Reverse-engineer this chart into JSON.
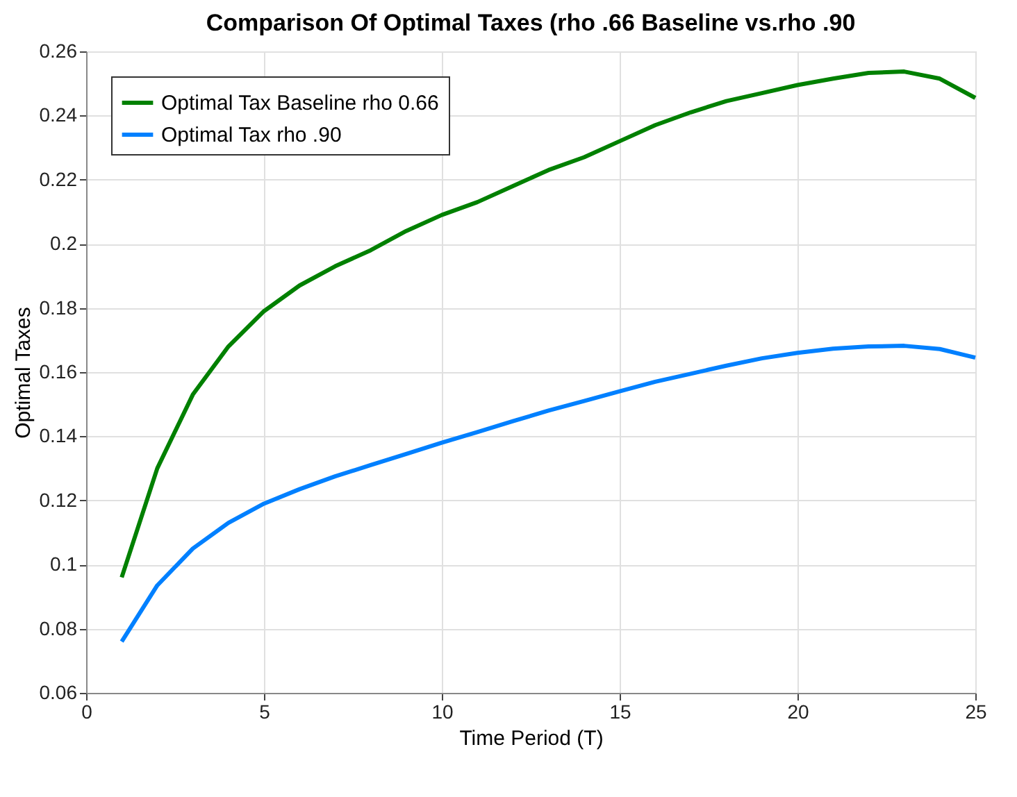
{
  "chart_data": {
    "type": "line",
    "title": "Comparison Of Optimal Taxes (rho .66 Baseline vs.rho .90",
    "xlabel": "Time Period (T)",
    "ylabel": "Optimal Taxes",
    "x": [
      1,
      2,
      3,
      4,
      5,
      6,
      7,
      8,
      9,
      10,
      11,
      12,
      13,
      14,
      15,
      16,
      17,
      18,
      19,
      20,
      21,
      22,
      23,
      24,
      25
    ],
    "series": [
      {
        "name": "Optimal Tax Baseline rho 0.66",
        "color": "#008000",
        "values": [
          0.096,
          0.13,
          0.153,
          0.168,
          0.179,
          0.187,
          0.193,
          0.198,
          0.204,
          0.209,
          0.213,
          0.218,
          0.223,
          0.227,
          0.232,
          0.237,
          0.241,
          0.2445,
          0.247,
          0.2495,
          0.2515,
          0.2533,
          0.2537,
          0.2515,
          0.2455
        ]
      },
      {
        "name": " Optimal Tax rho .90",
        "color": "#0080ff",
        "values": [
          0.076,
          0.0935,
          0.105,
          0.113,
          0.119,
          0.1235,
          0.1275,
          0.131,
          0.1345,
          0.138,
          0.1413,
          0.1447,
          0.148,
          0.151,
          0.154,
          0.157,
          0.1595,
          0.162,
          0.1643,
          0.166,
          0.1673,
          0.168,
          0.1682,
          0.1672,
          0.1645
        ]
      }
    ],
    "xlim": [
      0,
      25
    ],
    "xticks": [
      0,
      5,
      10,
      15,
      20,
      25
    ],
    "ylim": [
      0.06,
      0.26
    ],
    "yticks": [
      0.06,
      0.08,
      0.1,
      0.12,
      0.14,
      0.16,
      0.18,
      0.2,
      0.22,
      0.24,
      0.26
    ],
    "grid": true,
    "legend": "top left",
    "marker": "none",
    "line_style": "solid"
  }
}
